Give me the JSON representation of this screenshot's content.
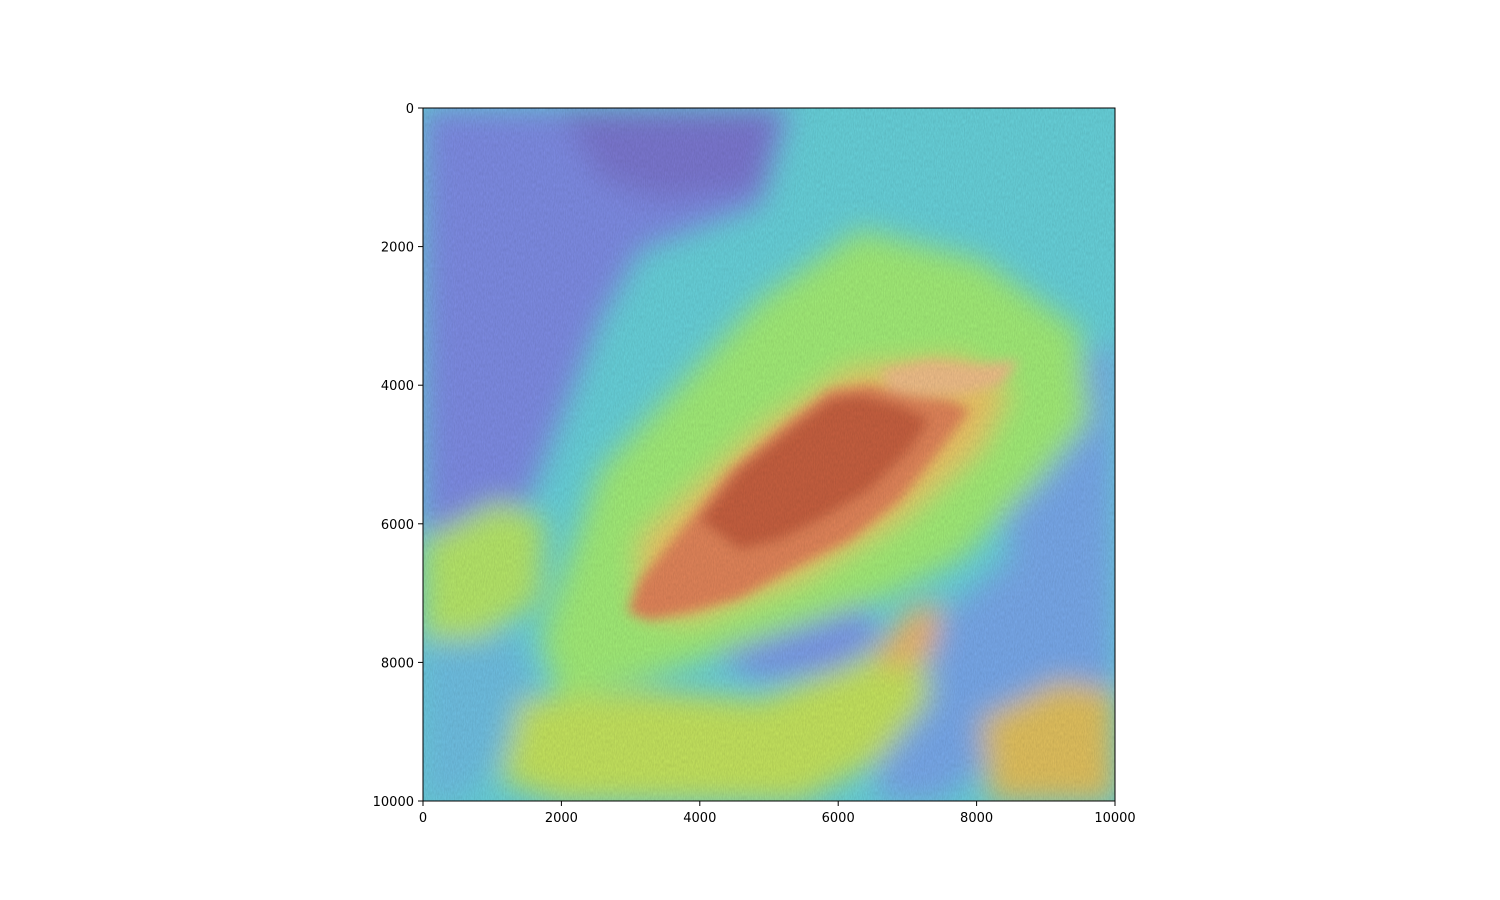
{
  "chart_data": {
    "type": "heatmap",
    "title": "",
    "xlabel": "",
    "ylabel": "",
    "xlim": [
      0,
      10000
    ],
    "ylim": [
      10000,
      0
    ],
    "x_ticks": [
      0,
      2000,
      4000,
      6000,
      8000,
      10000
    ],
    "y_ticks": [
      0,
      2000,
      4000,
      6000,
      8000,
      10000
    ],
    "x_tick_labels": [
      "0",
      "2000",
      "4000",
      "6000",
      "8000",
      "10000"
    ],
    "y_tick_labels": [
      "0",
      "2000",
      "4000",
      "6000",
      "8000",
      "10000"
    ],
    "colormap": "turbo",
    "overlay": "hillshade",
    "grid": false,
    "legend": "none"
  }
}
